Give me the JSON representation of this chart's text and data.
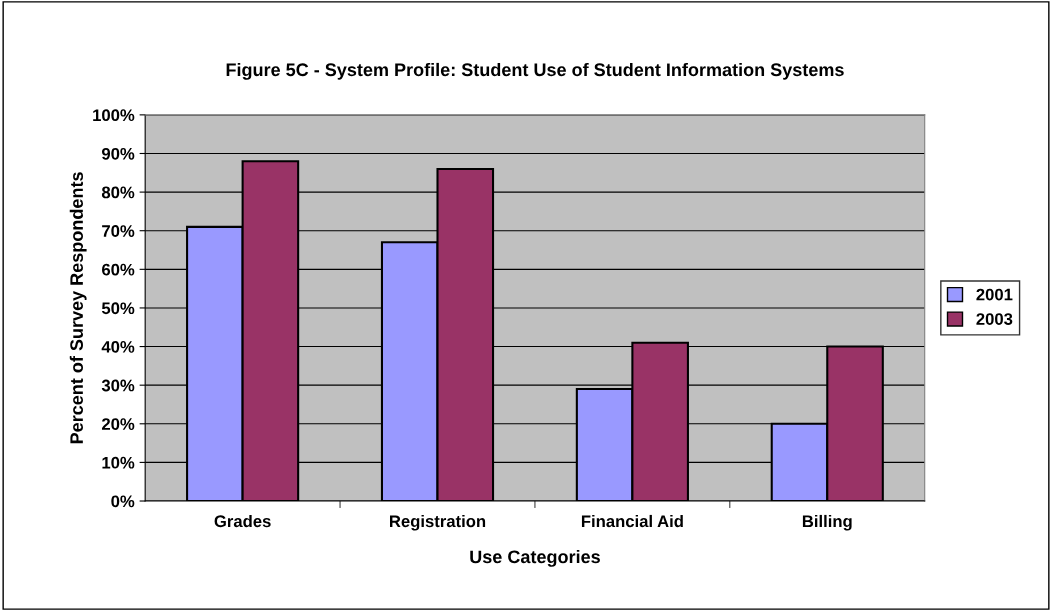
{
  "chart_data": {
    "type": "bar",
    "title": "Figure 5C - System Profile: Student Use of Student Information Systems",
    "xlabel": "Use Categories",
    "ylabel": "Percent of Survey Respondents",
    "categories": [
      "Grades",
      "Registration",
      "Financial Aid",
      "Billing"
    ],
    "series": [
      {
        "name": "2001",
        "color": "#9999ff",
        "values": [
          71,
          67,
          29,
          20
        ]
      },
      {
        "name": "2003",
        "color": "#993366",
        "values": [
          88,
          86,
          41,
          40
        ]
      }
    ],
    "ylim": [
      0,
      100
    ],
    "yticks": [
      {
        "value": 0,
        "label": "0%"
      },
      {
        "value": 10,
        "label": "10%"
      },
      {
        "value": 20,
        "label": "20%"
      },
      {
        "value": 30,
        "label": "30%"
      },
      {
        "value": 40,
        "label": "40%"
      },
      {
        "value": 50,
        "label": "50%"
      },
      {
        "value": 60,
        "label": "60%"
      },
      {
        "value": 70,
        "label": "70%"
      },
      {
        "value": 80,
        "label": "80%"
      },
      {
        "value": 90,
        "label": "90%"
      },
      {
        "value": 100,
        "label": "100%"
      }
    ],
    "grid": "y",
    "legend": "right"
  }
}
